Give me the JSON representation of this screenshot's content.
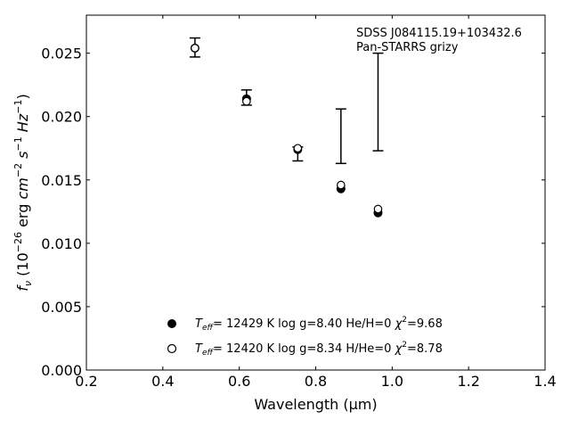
{
  "chart_data": {
    "type": "scatter",
    "title_lines": [
      "SDSS J084115.19+103432.6",
      "Pan-STARRS grizy"
    ],
    "xlabel": "Wavelength (μm)",
    "ylabel": {
      "f": "f",
      "nu": "ν",
      "open": " (10",
      "exp26": "−26",
      "erg": " erg ",
      "cm": "cm",
      "m2": "−2",
      "s": " s",
      "m1a": "−1",
      "hz": " Hz",
      "m1b": "−1",
      "close": ")"
    },
    "xlim": [
      0.2,
      1.4
    ],
    "ylim": [
      0.0,
      0.028
    ],
    "xticks": [
      0.2,
      0.4,
      0.6,
      0.8,
      1.0,
      1.2,
      1.4
    ],
    "xtick_labels": [
      "0.2",
      "0.4",
      "0.6",
      "0.8",
      "1.0",
      "1.2",
      "1.4"
    ],
    "yticks": [
      0.0,
      0.005,
      0.01,
      0.015,
      0.02,
      0.025
    ],
    "ytick_labels": [
      "0.000",
      "0.005",
      "0.010",
      "0.015",
      "0.020",
      "0.025"
    ],
    "grid": false,
    "legend_position": "bottom-center",
    "observed": {
      "x": [
        0.484,
        0.619,
        0.753,
        0.866,
        0.963
      ],
      "y_low": [
        0.0247,
        0.0209,
        0.0165,
        0.0163,
        0.0173
      ],
      "y_high": [
        0.0262,
        0.0221,
        0.0176,
        0.0206,
        0.025
      ]
    },
    "series": [
      {
        "label_parts": {
          "t": "T",
          "sub": "eff",
          "params": "= 12429 K  log g=8.40  He/H=0  ",
          "chi": "χ",
          "sup": "2",
          "val": "=9.68"
        },
        "marker": "filled",
        "color": "#000000",
        "x": [
          0.484,
          0.619,
          0.753,
          0.866,
          0.963
        ],
        "y": [
          0.0254,
          0.0214,
          0.0174,
          0.0143,
          0.0124
        ]
      },
      {
        "label_parts": {
          "t": "T",
          "sub": "eff",
          "params": "= 12420 K  log g=8.34  H/He=0  ",
          "chi": "χ",
          "sup": "2",
          "val": "=8.78"
        },
        "marker": "open",
        "color": "#000000",
        "x": [
          0.484,
          0.619,
          0.753,
          0.866,
          0.963
        ],
        "y": [
          0.0254,
          0.0212,
          0.0175,
          0.0146,
          0.0127
        ]
      }
    ]
  }
}
